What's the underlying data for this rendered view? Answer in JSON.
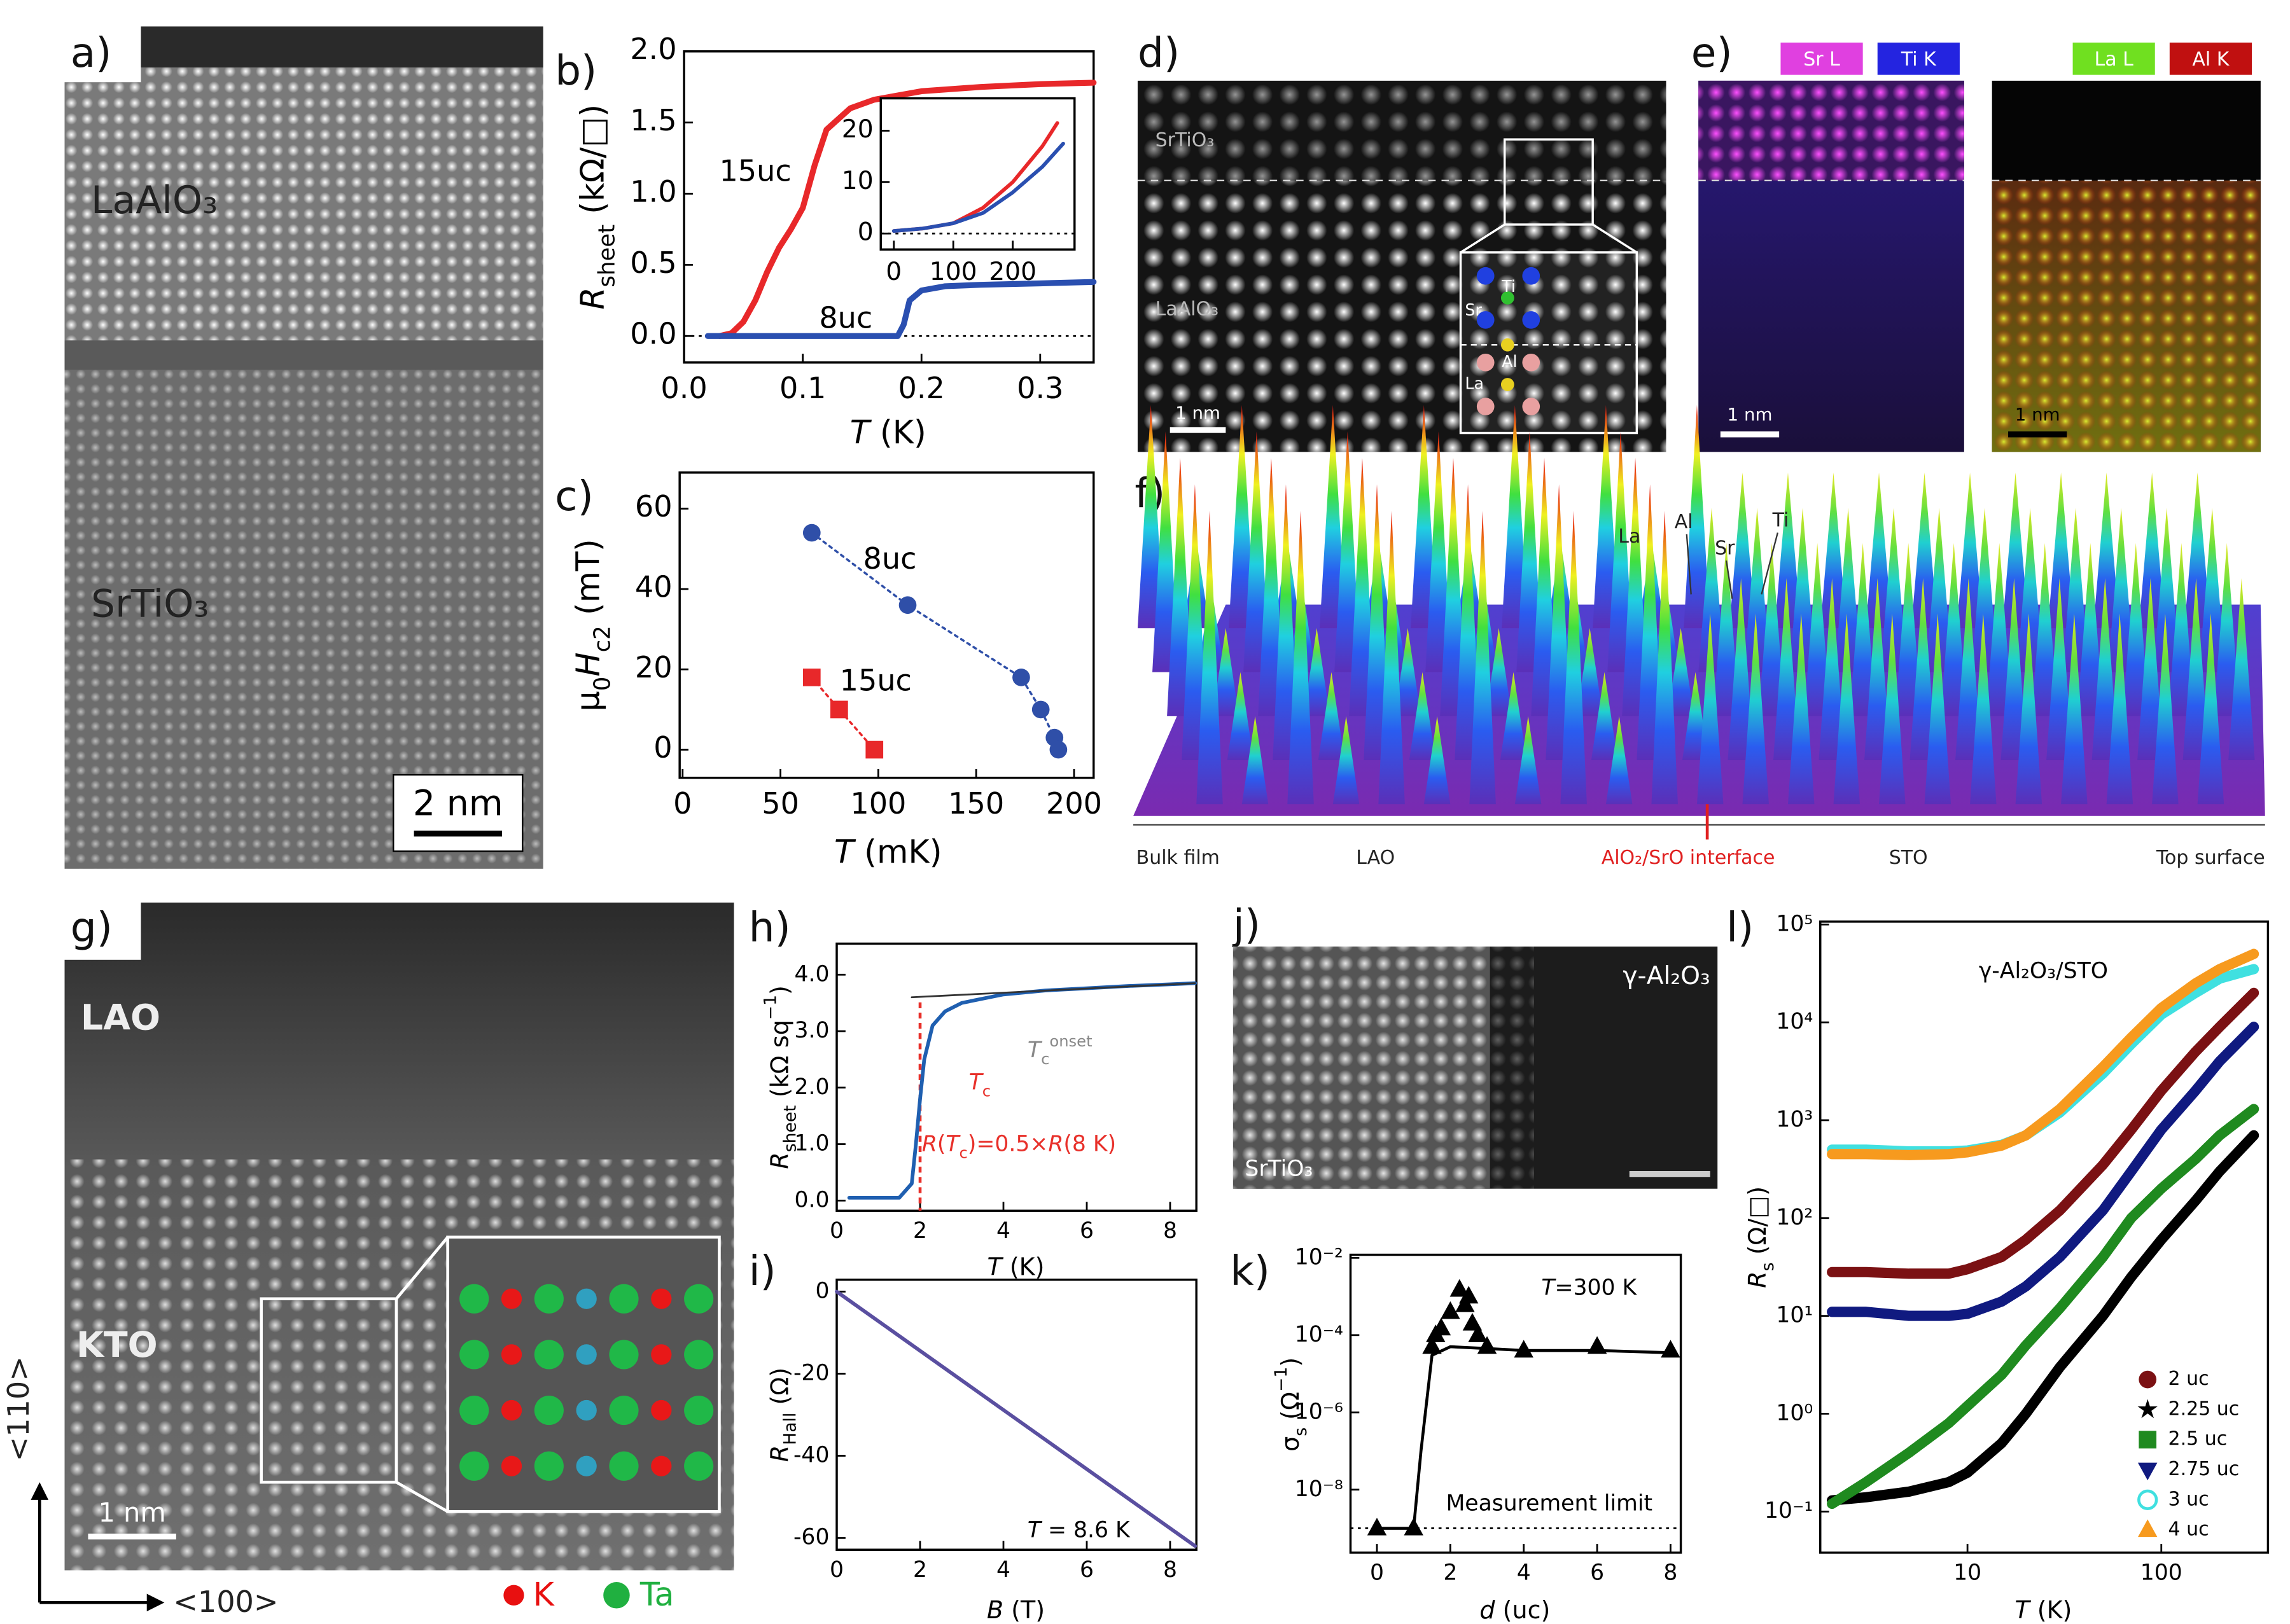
{
  "images": {
    "a": {
      "panel": "a)",
      "labels": [
        "LaAlO₃",
        "SrTiO₃"
      ],
      "scale_bar": "2 nm"
    },
    "d": {
      "panel": "d)",
      "labels": [
        "SrTiO₃",
        "LaAlO₃"
      ],
      "scale_bar": "1 nm",
      "atoms": [
        "Ti",
        "Sr",
        "Al",
        "La"
      ]
    },
    "e": {
      "panel": "e)",
      "left_tags": [
        "Sr L",
        "Ti K"
      ],
      "right_tags": [
        "La L",
        "Al K"
      ],
      "scale_bars": [
        "1 nm",
        "1 nm"
      ]
    },
    "f": {
      "panel": "f)",
      "peaks": [
        "La",
        "Al",
        "Sr",
        "Ti"
      ],
      "axis_labels": [
        "Bulk film",
        "LAO",
        "AlO₂/SrO interface",
        "STO",
        "Top surface"
      ]
    },
    "g": {
      "panel": "g)",
      "labels": [
        "LAO",
        "KTO"
      ],
      "scale_bar": "1 nm",
      "directions": [
        "<110>",
        "<100>"
      ],
      "legend": [
        "K",
        "Ta"
      ]
    },
    "j": {
      "panel": "j)",
      "labels": [
        "γ-Al₂O₃",
        "SrTiO₃"
      ]
    }
  },
  "chart_data": [
    {
      "type": "line",
      "panel": "b)",
      "xlabel": [
        {
          "text": "T",
          "style": "italic"
        },
        {
          "text": " (K)",
          "style": "plain"
        }
      ],
      "ylabel": [
        {
          "text": "R",
          "style": "italic"
        },
        {
          "text": "sheet",
          "style": "sub"
        },
        {
          "text": " (kΩ/□)",
          "style": "plain"
        }
      ],
      "xlim": [
        0,
        0.345
      ],
      "xticks": [
        {
          "value": 0,
          "label": "0.0"
        },
        0.1,
        0.2,
        0.3
      ],
      "ylim": [
        -0.186,
        2.0
      ],
      "yticks": [
        {
          "value": 0,
          "label": "0.0"
        },
        0.5,
        {
          "value": 1,
          "label": "1.0"
        },
        1.5,
        {
          "value": 2,
          "label": "2.0"
        }
      ],
      "hlines": [
        0
      ],
      "series": [
        {
          "name": "15uc",
          "color": "#e8282a",
          "x": [
            0.03,
            0.04,
            0.05,
            0.06,
            0.07,
            0.08,
            0.09,
            0.1,
            0.11,
            0.12,
            0.14,
            0.16,
            0.2,
            0.25,
            0.3,
            0.345
          ],
          "values": [
            0,
            0.02,
            0.1,
            0.25,
            0.45,
            0.62,
            0.75,
            0.9,
            1.2,
            1.45,
            1.6,
            1.66,
            1.72,
            1.75,
            1.77,
            1.78
          ]
        },
        {
          "name": "8uc",
          "color": "#2a4fb0",
          "x": [
            0.02,
            0.1,
            0.18,
            0.185,
            0.19,
            0.2,
            0.22,
            0.25,
            0.3,
            0.345
          ],
          "values": [
            0,
            0,
            0,
            0.08,
            0.25,
            0.32,
            0.35,
            0.36,
            0.37,
            0.38
          ]
        }
      ]
    },
    {
      "type": "line",
      "xlim": [
        -22,
        304
      ],
      "xticks": [
        0,
        100,
        200
      ],
      "ylim": [
        -3.1,
        26.3
      ],
      "yticks": [
        0,
        10,
        20
      ],
      "hlines": [
        0
      ],
      "series": [
        {
          "color": "#e8282a",
          "x": [
            0,
            50,
            100,
            150,
            200,
            250,
            275
          ],
          "values": [
            0.5,
            1,
            2,
            5,
            10,
            17,
            21.5
          ]
        },
        {
          "color": "#2a4fb0",
          "x": [
            0,
            50,
            100,
            150,
            200,
            250,
            285
          ],
          "values": [
            0.5,
            1,
            2,
            4,
            8,
            13,
            17.5
          ]
        }
      ]
    },
    {
      "type": "scatter",
      "panel": "c)",
      "xlabel": [
        {
          "text": "T",
          "style": "italic"
        },
        {
          "text": " (mK)",
          "style": "plain"
        }
      ],
      "ylabel": [
        {
          "text": "μ",
          "style": "plain"
        },
        {
          "text": "0",
          "style": "sub"
        },
        {
          "text": "H",
          "style": "italic"
        },
        {
          "text": "c2",
          "style": "sub"
        },
        {
          "text": " (mT)",
          "style": "plain"
        }
      ],
      "xlim": [
        -1.5,
        210
      ],
      "xticks": [
        0,
        50,
        100,
        150,
        200
      ],
      "ylim": [
        -7,
        69
      ],
      "yticks": [
        0,
        20,
        40,
        60
      ],
      "series": [
        {
          "name": "8uc",
          "color": "#2f4fa8",
          "marker": "circle",
          "connect": "dotted",
          "x": [
            66,
            115,
            173,
            183,
            190,
            192
          ],
          "values": [
            54,
            36,
            18,
            10,
            3,
            0
          ]
        },
        {
          "name": "15uc",
          "color": "#e8282a",
          "marker": "square",
          "connect": "dotted",
          "x": [
            66,
            80,
            98
          ],
          "values": [
            18,
            10,
            0
          ]
        }
      ]
    },
    {
      "type": "line",
      "panel": "h)",
      "xlabel": [
        {
          "text": "T",
          "style": "italic"
        },
        {
          "text": " (K)",
          "style": "plain"
        }
      ],
      "ylabel": [
        {
          "text": "R",
          "style": "italic"
        },
        {
          "text": "sheet",
          "style": "sub"
        },
        {
          "text": " (kΩ sq",
          "style": "plain"
        },
        {
          "text": "−1",
          "style": "sup"
        },
        {
          "text": ")",
          "style": "plain"
        }
      ],
      "xlim": [
        0,
        8.63
      ],
      "xticks": [
        0,
        2,
        4,
        6,
        8
      ],
      "ylim": [
        -0.18,
        4.55
      ],
      "yticks": [
        {
          "value": 0,
          "label": "0.0"
        },
        {
          "value": 1,
          "label": "1.0"
        },
        {
          "value": 2,
          "label": "2.0"
        },
        {
          "value": 3,
          "label": "3.0"
        },
        {
          "value": 4,
          "label": "4.0"
        }
      ],
      "vlines": [
        2
      ],
      "vline_color": "#e8302a",
      "series": [
        {
          "color": "#1f5fb0",
          "x": [
            0.3,
            1.5,
            1.8,
            1.9,
            2.0,
            2.1,
            2.3,
            2.6,
            3,
            4,
            5,
            6,
            7,
            8,
            8.6
          ],
          "values": [
            0.05,
            0.05,
            0.3,
            1.0,
            1.8,
            2.5,
            3.1,
            3.35,
            3.5,
            3.65,
            3.72,
            3.76,
            3.8,
            3.83,
            3.85
          ]
        },
        {
          "color": "#333333",
          "x": [
            1.8,
            8.6
          ],
          "values": [
            3.6,
            3.85
          ]
        }
      ],
      "annotations": [
        {
          "color": "#e8302a",
          "parts": [
            {
              "text": "T",
              "style": "italic"
            },
            {
              "text": "c",
              "style": "sub"
            }
          ]
        },
        {
          "color": "#888888",
          "parts": [
            {
              "text": "T",
              "style": "italic"
            },
            {
              "text": "c",
              "style": "sub"
            },
            {
              "text": "onset",
              "style": "sup"
            }
          ]
        },
        {
          "color": "#e8302a",
          "parts": [
            {
              "text": "R",
              "style": "italic"
            },
            {
              "text": "(",
              "style": "plain"
            },
            {
              "text": "T",
              "style": "italic"
            },
            {
              "text": "c",
              "style": "sub"
            },
            {
              "text": ")=0.5×",
              "style": "plain"
            },
            {
              "text": "R",
              "style": "italic"
            },
            {
              "text": "(8 K)",
              "style": "plain"
            }
          ]
        }
      ]
    },
    {
      "type": "line",
      "panel": "i)",
      "xlabel": [
        {
          "text": "B",
          "style": "italic"
        },
        {
          "text": " (T)",
          "style": "plain"
        }
      ],
      "ylabel": [
        {
          "text": "R",
          "style": "italic"
        },
        {
          "text": "Hall",
          "style": "sub"
        },
        {
          "text": " (Ω)",
          "style": "plain"
        }
      ],
      "xlim": [
        0,
        8.63
      ],
      "xticks": [
        0,
        2,
        4,
        6,
        8
      ],
      "ylim": [
        -62.9,
        2.9
      ],
      "yticks": [
        0,
        -20,
        -40,
        -60
      ],
      "series": [
        {
          "color": "#5a4fa0",
          "x": [
            0,
            8.6
          ],
          "values": [
            0,
            -62
          ]
        }
      ],
      "annotations": [
        {
          "color": "#000000",
          "parts": [
            {
              "text": "T",
              "style": "italic"
            },
            {
              "text": " = 8.6 K",
              "style": "plain"
            }
          ]
        }
      ]
    },
    {
      "type": "scatter",
      "panel": "k)",
      "yscale": "log",
      "xlabel": [
        {
          "text": "d",
          "style": "italic"
        },
        {
          "text": " (uc)",
          "style": "plain"
        }
      ],
      "ylabel": [
        {
          "text": "σ",
          "style": "plain"
        },
        {
          "text": "s",
          "style": "sub"
        },
        {
          "text": " (Ω",
          "style": "plain"
        },
        {
          "text": "−1",
          "style": "sup"
        },
        {
          "text": ")",
          "style": "plain"
        }
      ],
      "xlim": [
        -0.72,
        8.28
      ],
      "xticks": [
        0,
        2,
        4,
        6,
        8
      ],
      "ylim": [
        2.34e-10,
        0.012
      ],
      "yticks": [
        {
          "value": 1e-08,
          "label": "10⁻⁸"
        },
        {
          "value": 1e-06,
          "label": "10⁻⁶"
        },
        {
          "value": 0.0001,
          "label": "10⁻⁴"
        },
        {
          "value": 0.01,
          "label": "10⁻²"
        }
      ],
      "hlines": [
        1e-09
      ],
      "series": [
        {
          "color": "#000000",
          "marker": "triangle",
          "x": [
            0,
            1,
            1.5,
            1.6,
            1.75,
            2,
            2.25,
            2.4,
            2.5,
            2.6,
            2.75,
            3,
            4,
            6,
            8
          ],
          "values": [
            1e-09,
            1e-09,
            5e-05,
            0.0001,
            0.00015,
            0.0004,
            0.0015,
            0.0006,
            0.001,
            0.0002,
            0.0001,
            5e-05,
            4e-05,
            5e-05,
            4e-05
          ]
        },
        {
          "color": "#000000",
          "connect": "solid",
          "x": [
            0,
            1,
            1.2,
            1.5,
            2,
            3,
            4,
            6,
            8
          ],
          "values": [
            1e-09,
            1e-09,
            1e-07,
            3e-05,
            5e-05,
            4.5e-05,
            4e-05,
            4e-05,
            3.5e-05
          ]
        }
      ],
      "annotations": [
        {
          "color": "#000000",
          "parts": [
            {
              "text": "T",
              "style": "italic"
            },
            {
              "text": "=300 K",
              "style": "plain"
            }
          ]
        },
        {
          "color": "#000000",
          "parts": [
            {
              "text": "Measurement limit",
              "style": "plain"
            }
          ]
        }
      ]
    },
    {
      "type": "line",
      "panel": "l)",
      "xscale": "log",
      "yscale": "log",
      "title": "γ-Al₂O₃/STO",
      "legend": "lower right",
      "xlabel": [
        {
          "text": "T",
          "style": "italic"
        },
        {
          "text": " (K)",
          "style": "plain"
        }
      ],
      "ylabel": [
        {
          "text": "R",
          "style": "italic"
        },
        {
          "text": "s",
          "style": "sub"
        },
        {
          "text": " (Ω/□)",
          "style": "plain"
        }
      ],
      "xlim": [
        1.74,
        355
      ],
      "xticks": [
        10,
        100
      ],
      "ylim": [
        0.038,
        107000
      ],
      "yticks": [
        {
          "value": 0.1,
          "label": "10⁻¹"
        },
        {
          "value": 1,
          "label": "10⁰"
        },
        {
          "value": 10,
          "label": "10¹"
        },
        {
          "value": 100,
          "label": "10²"
        },
        {
          "value": 1000,
          "label": "10³"
        },
        {
          "value": 10000,
          "label": "10⁴"
        },
        {
          "value": 100000,
          "label": "10⁵"
        }
      ],
      "series": [
        {
          "name": "2 uc",
          "color": "#7b1113",
          "marker": "circle",
          "x": [
            2,
            3,
            5,
            8,
            10,
            15,
            20,
            30,
            50,
            70,
            100,
            150,
            200,
            300
          ],
          "values": [
            28,
            28,
            27,
            27,
            30,
            40,
            60,
            120,
            350,
            800,
            2000,
            5000,
            9000,
            20000
          ]
        },
        {
          "name": "2.25 uc",
          "color": "#000000",
          "marker": "star",
          "x": [
            2,
            3,
            5,
            8,
            10,
            15,
            20,
            30,
            50,
            70,
            100,
            150,
            200,
            300
          ],
          "values": [
            0.13,
            0.14,
            0.16,
            0.2,
            0.25,
            0.5,
            1,
            3,
            10,
            25,
            60,
            150,
            300,
            700
          ]
        },
        {
          "name": "2.5 uc",
          "color": "#1f8a1f",
          "marker": "square",
          "x": [
            2,
            3,
            5,
            8,
            10,
            15,
            20,
            30,
            50,
            70,
            100,
            150,
            200,
            300
          ],
          "values": [
            0.12,
            0.2,
            0.4,
            0.8,
            1.2,
            2.5,
            5,
            12,
            40,
            100,
            200,
            400,
            700,
            1300
          ]
        },
        {
          "name": "2.75 uc",
          "color": "#101a80",
          "marker": "triangle-down",
          "x": [
            2,
            3,
            5,
            8,
            10,
            15,
            20,
            30,
            50,
            70,
            100,
            150,
            200,
            300
          ],
          "values": [
            11,
            11,
            10,
            10,
            10.5,
            14,
            20,
            40,
            120,
            300,
            800,
            2000,
            4000,
            9000
          ]
        },
        {
          "name": "3 uc",
          "color": "#40e0e0",
          "marker": "circle-open",
          "x": [
            2,
            3,
            5,
            8,
            10,
            15,
            20,
            30,
            50,
            70,
            100,
            150,
            200,
            300
          ],
          "values": [
            500,
            500,
            480,
            480,
            490,
            560,
            700,
            1200,
            3000,
            6000,
            12000,
            20000,
            28000,
            35000
          ]
        },
        {
          "name": "4 uc",
          "color": "#f79a1e",
          "marker": "triangle",
          "x": [
            2,
            3,
            5,
            8,
            10,
            15,
            20,
            30,
            50,
            70,
            100,
            150,
            200,
            300
          ],
          "values": [
            450,
            450,
            440,
            450,
            470,
            550,
            700,
            1300,
            3500,
            7000,
            14000,
            25000,
            35000,
            50000
          ]
        }
      ]
    }
  ]
}
